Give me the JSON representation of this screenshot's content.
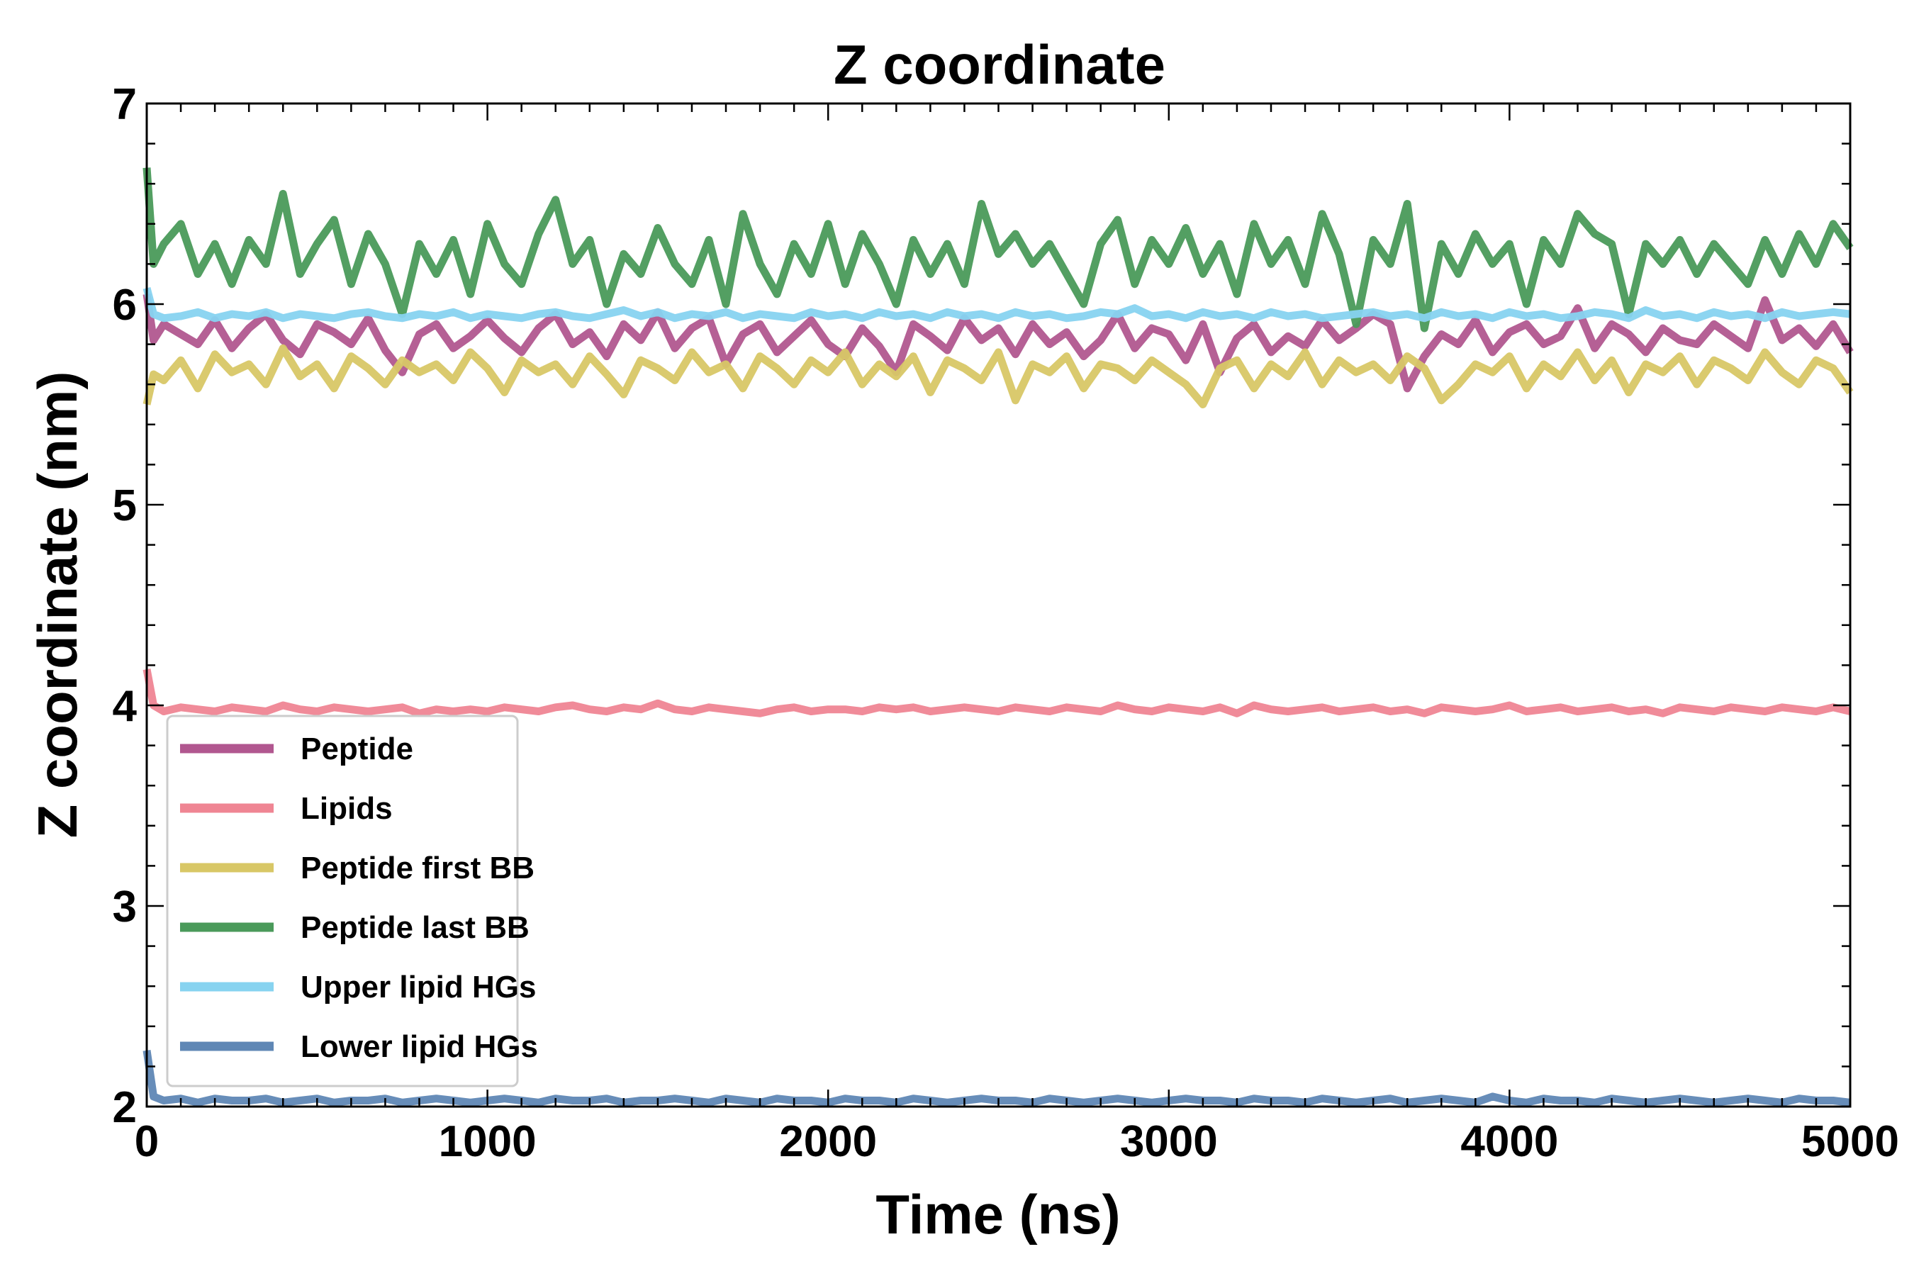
{
  "chart_data": {
    "type": "line",
    "title": "Z coordinate",
    "xlabel": "Time (ns)",
    "ylabel": "Z coordinate (nm)",
    "xlim": [
      0,
      5000
    ],
    "ylim": [
      2,
      7
    ],
    "xticks": [
      0,
      1000,
      2000,
      3000,
      4000,
      5000
    ],
    "yticks": [
      2,
      3,
      4,
      5,
      6,
      7
    ],
    "grid": false,
    "legend_position": "lower-left",
    "x": [
      0,
      20,
      50,
      100,
      150,
      200,
      250,
      300,
      350,
      400,
      450,
      500,
      550,
      600,
      650,
      700,
      750,
      800,
      850,
      900,
      950,
      1000,
      1050,
      1100,
      1150,
      1200,
      1250,
      1300,
      1350,
      1400,
      1450,
      1500,
      1550,
      1600,
      1650,
      1700,
      1750,
      1800,
      1850,
      1900,
      1950,
      2000,
      2050,
      2100,
      2150,
      2200,
      2250,
      2300,
      2350,
      2400,
      2450,
      2500,
      2550,
      2600,
      2650,
      2700,
      2750,
      2800,
      2850,
      2900,
      2950,
      3000,
      3050,
      3100,
      3150,
      3200,
      3250,
      3300,
      3350,
      3400,
      3450,
      3500,
      3550,
      3600,
      3650,
      3700,
      3750,
      3800,
      3850,
      3900,
      3950,
      4000,
      4050,
      4100,
      4150,
      4200,
      4250,
      4300,
      4350,
      4400,
      4450,
      4500,
      4550,
      4600,
      4650,
      4700,
      4750,
      4800,
      4850,
      4900,
      4950,
      5000
    ],
    "series": [
      {
        "name": "Peptide",
        "color": "#b1578f",
        "values": [
          6.05,
          5.82,
          5.9,
          5.85,
          5.8,
          5.92,
          5.78,
          5.88,
          5.95,
          5.82,
          5.75,
          5.9,
          5.86,
          5.8,
          5.93,
          5.77,
          5.66,
          5.85,
          5.9,
          5.78,
          5.84,
          5.92,
          5.83,
          5.76,
          5.88,
          5.95,
          5.8,
          5.86,
          5.74,
          5.9,
          5.82,
          5.96,
          5.78,
          5.88,
          5.93,
          5.7,
          5.85,
          5.9,
          5.76,
          5.84,
          5.92,
          5.8,
          5.74,
          5.88,
          5.79,
          5.66,
          5.9,
          5.84,
          5.77,
          5.93,
          5.82,
          5.88,
          5.75,
          5.9,
          5.8,
          5.86,
          5.74,
          5.82,
          5.95,
          5.78,
          5.88,
          5.85,
          5.72,
          5.9,
          5.66,
          5.83,
          5.9,
          5.76,
          5.84,
          5.79,
          5.92,
          5.82,
          5.88,
          5.95,
          5.9,
          5.58,
          5.74,
          5.85,
          5.8,
          5.92,
          5.76,
          5.86,
          5.9,
          5.8,
          5.84,
          5.98,
          5.78,
          5.9,
          5.85,
          5.76,
          5.88,
          5.82,
          5.8,
          5.9,
          5.84,
          5.78,
          6.02,
          5.82,
          5.88,
          5.79,
          5.9,
          5.76
        ]
      },
      {
        "name": "Lipids",
        "color": "#ef8593",
        "values": [
          4.18,
          4.0,
          3.97,
          3.99,
          3.98,
          3.97,
          3.99,
          3.98,
          3.97,
          4.0,
          3.98,
          3.97,
          3.99,
          3.98,
          3.97,
          3.98,
          3.99,
          3.96,
          3.98,
          3.97,
          3.98,
          3.97,
          3.99,
          3.98,
          3.97,
          3.99,
          4.0,
          3.98,
          3.97,
          3.99,
          3.98,
          4.01,
          3.98,
          3.97,
          3.99,
          3.98,
          3.97,
          3.96,
          3.98,
          3.99,
          3.97,
          3.98,
          3.98,
          3.97,
          3.99,
          3.98,
          3.99,
          3.97,
          3.98,
          3.99,
          3.98,
          3.97,
          3.99,
          3.98,
          3.97,
          3.99,
          3.98,
          3.97,
          4.0,
          3.98,
          3.97,
          3.99,
          3.98,
          3.97,
          3.99,
          3.96,
          4.0,
          3.98,
          3.97,
          3.98,
          3.99,
          3.97,
          3.98,
          3.99,
          3.97,
          3.98,
          3.96,
          3.99,
          3.98,
          3.97,
          3.98,
          4.0,
          3.97,
          3.98,
          3.99,
          3.97,
          3.98,
          3.99,
          3.97,
          3.98,
          3.96,
          3.99,
          3.98,
          3.97,
          3.99,
          3.98,
          3.97,
          3.99,
          3.98,
          3.97,
          3.99,
          3.97
        ]
      },
      {
        "name": "Peptide first BB",
        "color": "#d8c766",
        "values": [
          5.5,
          5.65,
          5.62,
          5.72,
          5.58,
          5.75,
          5.66,
          5.7,
          5.6,
          5.78,
          5.64,
          5.7,
          5.58,
          5.74,
          5.68,
          5.6,
          5.72,
          5.66,
          5.7,
          5.62,
          5.76,
          5.68,
          5.56,
          5.72,
          5.66,
          5.7,
          5.6,
          5.74,
          5.65,
          5.55,
          5.72,
          5.68,
          5.62,
          5.76,
          5.66,
          5.7,
          5.58,
          5.74,
          5.68,
          5.6,
          5.72,
          5.66,
          5.76,
          5.6,
          5.7,
          5.64,
          5.74,
          5.56,
          5.72,
          5.68,
          5.62,
          5.76,
          5.52,
          5.7,
          5.66,
          5.74,
          5.58,
          5.7,
          5.68,
          5.62,
          5.72,
          5.66,
          5.6,
          5.5,
          5.68,
          5.72,
          5.58,
          5.7,
          5.64,
          5.76,
          5.6,
          5.72,
          5.66,
          5.7,
          5.62,
          5.74,
          5.68,
          5.52,
          5.6,
          5.7,
          5.66,
          5.74,
          5.58,
          5.7,
          5.64,
          5.76,
          5.62,
          5.72,
          5.56,
          5.7,
          5.66,
          5.74,
          5.6,
          5.72,
          5.68,
          5.62,
          5.76,
          5.66,
          5.6,
          5.72,
          5.68,
          5.56
        ]
      },
      {
        "name": "Peptide last BB",
        "color": "#4a9a5a",
        "values": [
          6.68,
          6.2,
          6.3,
          6.4,
          6.15,
          6.3,
          6.1,
          6.32,
          6.2,
          6.55,
          6.15,
          6.3,
          6.42,
          6.1,
          6.35,
          6.2,
          5.95,
          6.3,
          6.15,
          6.32,
          6.05,
          6.4,
          6.2,
          6.1,
          6.35,
          6.52,
          6.2,
          6.32,
          6.0,
          6.25,
          6.15,
          6.38,
          6.2,
          6.1,
          6.32,
          6.0,
          6.45,
          6.2,
          6.05,
          6.3,
          6.15,
          6.4,
          6.1,
          6.35,
          6.2,
          6.0,
          6.32,
          6.15,
          6.3,
          6.1,
          6.5,
          6.25,
          6.35,
          6.2,
          6.3,
          6.15,
          6.0,
          6.3,
          6.42,
          6.1,
          6.32,
          6.2,
          6.38,
          6.15,
          6.3,
          6.05,
          6.4,
          6.2,
          6.32,
          6.1,
          6.45,
          6.25,
          5.9,
          6.32,
          6.2,
          6.5,
          5.88,
          6.3,
          6.15,
          6.35,
          6.2,
          6.3,
          6.0,
          6.32,
          6.2,
          6.45,
          6.35,
          6.3,
          5.95,
          6.3,
          6.2,
          6.32,
          6.15,
          6.3,
          6.2,
          6.1,
          6.32,
          6.15,
          6.35,
          6.2,
          6.4,
          6.28
        ]
      },
      {
        "name": "Upper lipid HGs",
        "color": "#87d3f0",
        "values": [
          6.08,
          5.95,
          5.93,
          5.94,
          5.96,
          5.93,
          5.95,
          5.94,
          5.96,
          5.93,
          5.95,
          5.94,
          5.93,
          5.95,
          5.96,
          5.94,
          5.93,
          5.95,
          5.94,
          5.96,
          5.93,
          5.95,
          5.94,
          5.93,
          5.95,
          5.96,
          5.94,
          5.93,
          5.95,
          5.97,
          5.94,
          5.96,
          5.93,
          5.95,
          5.94,
          5.96,
          5.93,
          5.95,
          5.94,
          5.93,
          5.96,
          5.94,
          5.95,
          5.93,
          5.96,
          5.94,
          5.95,
          5.93,
          5.96,
          5.94,
          5.95,
          5.93,
          5.96,
          5.94,
          5.95,
          5.93,
          5.94,
          5.96,
          5.95,
          5.98,
          5.94,
          5.95,
          5.93,
          5.96,
          5.94,
          5.95,
          5.93,
          5.96,
          5.94,
          5.95,
          5.93,
          5.94,
          5.95,
          5.96,
          5.94,
          5.95,
          5.93,
          5.96,
          5.94,
          5.95,
          5.93,
          5.96,
          5.94,
          5.95,
          5.93,
          5.94,
          5.96,
          5.95,
          5.93,
          5.97,
          5.94,
          5.95,
          5.93,
          5.96,
          5.94,
          5.95,
          5.93,
          5.96,
          5.94,
          5.95,
          5.96,
          5.95
        ]
      },
      {
        "name": "Lower lipid HGs",
        "color": "#5f87b5",
        "values": [
          2.28,
          2.05,
          2.03,
          2.04,
          2.02,
          2.04,
          2.03,
          2.03,
          2.04,
          2.02,
          2.03,
          2.04,
          2.02,
          2.03,
          2.03,
          2.04,
          2.02,
          2.03,
          2.04,
          2.03,
          2.02,
          2.03,
          2.04,
          2.03,
          2.02,
          2.04,
          2.03,
          2.03,
          2.04,
          2.02,
          2.03,
          2.03,
          2.04,
          2.03,
          2.02,
          2.04,
          2.03,
          2.02,
          2.04,
          2.03,
          2.03,
          2.02,
          2.04,
          2.03,
          2.03,
          2.02,
          2.04,
          2.03,
          2.02,
          2.03,
          2.04,
          2.03,
          2.03,
          2.02,
          2.04,
          2.03,
          2.02,
          2.03,
          2.04,
          2.03,
          2.02,
          2.03,
          2.04,
          2.03,
          2.03,
          2.02,
          2.04,
          2.03,
          2.03,
          2.02,
          2.04,
          2.03,
          2.02,
          2.03,
          2.04,
          2.02,
          2.03,
          2.04,
          2.03,
          2.02,
          2.05,
          2.03,
          2.02,
          2.04,
          2.03,
          2.03,
          2.02,
          2.04,
          2.03,
          2.02,
          2.03,
          2.04,
          2.03,
          2.02,
          2.03,
          2.04,
          2.03,
          2.02,
          2.04,
          2.03,
          2.03,
          2.02
        ]
      }
    ]
  }
}
